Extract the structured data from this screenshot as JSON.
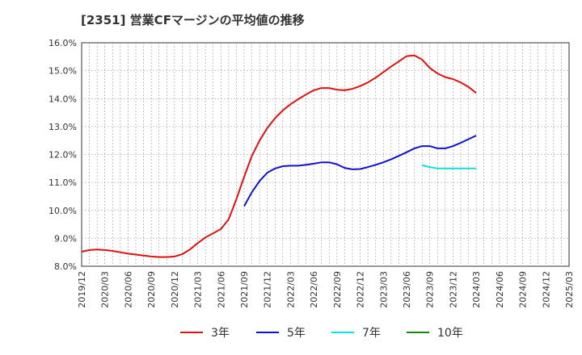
{
  "chart_data": {
    "type": "line",
    "title": "[2351]  営業CFマージンの平均値の推移",
    "xlabel": "",
    "ylabel": "",
    "ylim": [
      8.0,
      16.0
    ],
    "y_ticks": [
      "8.0%",
      "9.0%",
      "10.0%",
      "11.0%",
      "12.0%",
      "13.0%",
      "14.0%",
      "15.0%",
      "16.0%"
    ],
    "x_range": [
      "2019-12",
      "2025-03"
    ],
    "x_ticks": [
      "2019/12",
      "2020/03",
      "2020/06",
      "2020/09",
      "2020/12",
      "2021/03",
      "2021/06",
      "2021/09",
      "2021/12",
      "2022/03",
      "2022/06",
      "2022/09",
      "2022/12",
      "2023/03",
      "2023/06",
      "2023/09",
      "2023/12",
      "2024/03",
      "2024/06",
      "2024/09",
      "2024/12",
      "2025/03"
    ],
    "grid": true,
    "legend_position": "bottom",
    "series": [
      {
        "name": "3年",
        "color": "#dd1111",
        "x": [
          "2019-12",
          "2020-01",
          "2020-02",
          "2020-03",
          "2020-04",
          "2020-05",
          "2020-06",
          "2020-07",
          "2020-08",
          "2020-09",
          "2020-10",
          "2020-11",
          "2020-12",
          "2021-01",
          "2021-02",
          "2021-03",
          "2021-04",
          "2021-05",
          "2021-06",
          "2021-07",
          "2021-08",
          "2021-09",
          "2021-10",
          "2021-11",
          "2021-12",
          "2022-01",
          "2022-02",
          "2022-03",
          "2022-04",
          "2022-05",
          "2022-06",
          "2022-07",
          "2022-08",
          "2022-09",
          "2022-10",
          "2022-11",
          "2022-12",
          "2023-01",
          "2023-02",
          "2023-03",
          "2023-04",
          "2023-05",
          "2023-06",
          "2023-07",
          "2023-08",
          "2023-09",
          "2023-10",
          "2023-11",
          "2023-12",
          "2024-01",
          "2024-02",
          "2024-03"
        ],
        "values": [
          8.52,
          8.58,
          8.6,
          8.58,
          8.55,
          8.5,
          8.45,
          8.42,
          8.38,
          8.35,
          8.33,
          8.33,
          8.35,
          8.43,
          8.6,
          8.83,
          9.03,
          9.18,
          9.33,
          9.68,
          10.4,
          11.2,
          11.95,
          12.5,
          12.95,
          13.3,
          13.58,
          13.8,
          13.98,
          14.15,
          14.3,
          14.38,
          14.38,
          14.32,
          14.3,
          14.35,
          14.45,
          14.58,
          14.75,
          14.95,
          15.15,
          15.33,
          15.52,
          15.55,
          15.4,
          15.1,
          14.9,
          14.77,
          14.7,
          14.58,
          14.42,
          14.2
        ]
      },
      {
        "name": "5年",
        "color": "#1111cc",
        "x": [
          "2021-09",
          "2021-10",
          "2021-11",
          "2021-12",
          "2022-01",
          "2022-02",
          "2022-03",
          "2022-04",
          "2022-05",
          "2022-06",
          "2022-07",
          "2022-08",
          "2022-09",
          "2022-10",
          "2022-11",
          "2022-12",
          "2023-01",
          "2023-02",
          "2023-03",
          "2023-04",
          "2023-05",
          "2023-06",
          "2023-07",
          "2023-08",
          "2023-09",
          "2023-10",
          "2023-11",
          "2023-12",
          "2024-01",
          "2024-02",
          "2024-03"
        ],
        "values": [
          10.15,
          10.65,
          11.05,
          11.35,
          11.5,
          11.58,
          11.6,
          11.6,
          11.63,
          11.67,
          11.72,
          11.72,
          11.65,
          11.52,
          11.47,
          11.48,
          11.55,
          11.63,
          11.72,
          11.83,
          11.95,
          12.08,
          12.22,
          12.3,
          12.3,
          12.22,
          12.22,
          12.3,
          12.42,
          12.55,
          12.68
        ]
      },
      {
        "name": "7年",
        "color": "#11dddd",
        "x": [
          "2023-08",
          "2023-09",
          "2023-10",
          "2023-11",
          "2023-12",
          "2024-01",
          "2024-02",
          "2024-03"
        ],
        "values": [
          11.62,
          11.55,
          11.5,
          11.5,
          11.5,
          11.5,
          11.5,
          11.5
        ]
      },
      {
        "name": "10年",
        "color": "#118811",
        "x": [],
        "values": []
      }
    ]
  }
}
